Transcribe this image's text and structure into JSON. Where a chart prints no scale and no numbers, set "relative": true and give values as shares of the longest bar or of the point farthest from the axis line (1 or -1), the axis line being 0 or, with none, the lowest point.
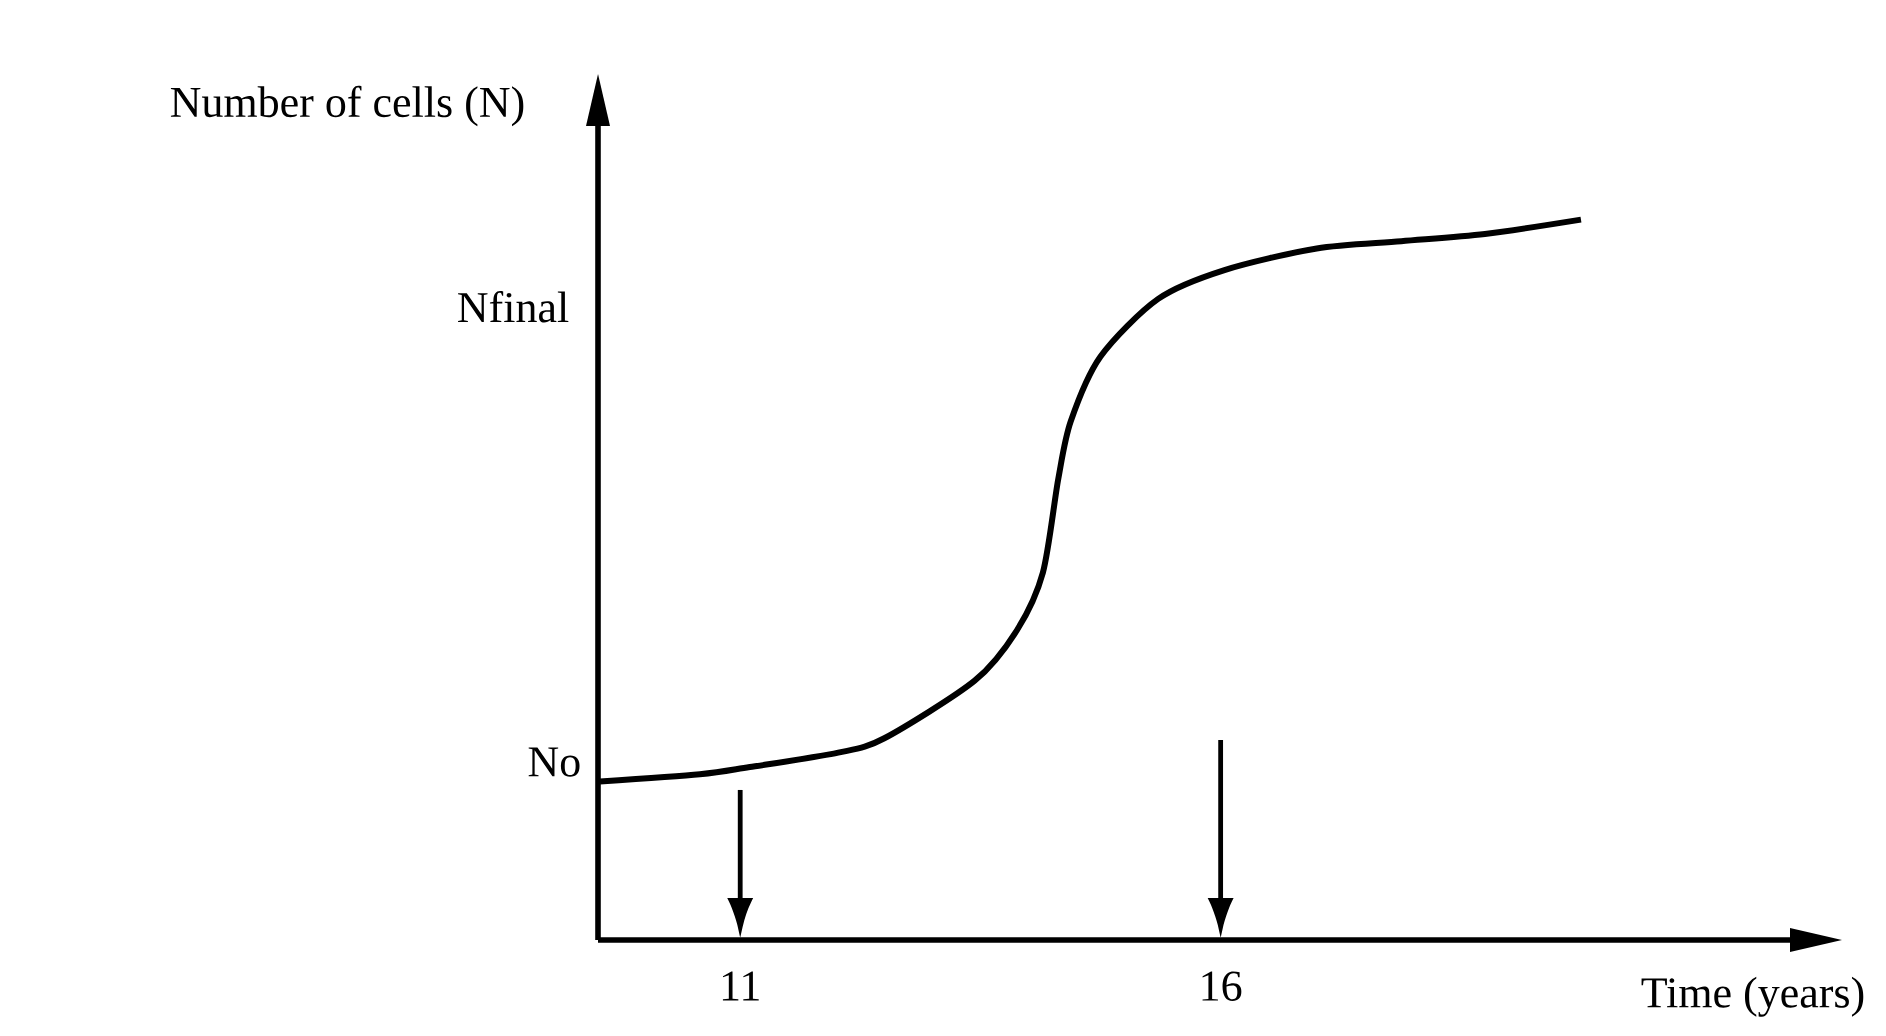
{
  "chart_data": {
    "type": "line",
    "relative": true,
    "xlabel": "Time (years)",
    "ylabel": "Number of cells (N)",
    "xlim": [
      9.52,
      22.3
    ],
    "xticks": [
      11,
      16
    ],
    "series": [
      {
        "color": "#000000",
        "x": [
          9.54,
          10.58,
          11.1,
          12.02,
          12.5,
          13.44,
          13.88,
          14.15,
          14.31,
          14.44,
          14.75,
          15.35,
          16.04,
          17.0,
          17.88,
          18.75,
          19.75
        ],
        "values": [
          0.22,
          0.23,
          0.24,
          0.26,
          0.28,
          0.36,
          0.43,
          0.51,
          0.64,
          0.72,
          0.81,
          0.89,
          0.93,
          0.96,
          0.97,
          0.98,
          1
        ]
      }
    ],
    "annotations": [
      {
        "text": "No",
        "x": 9.52,
        "y": 0.22
      },
      "Nfinal"
    ]
  }
}
